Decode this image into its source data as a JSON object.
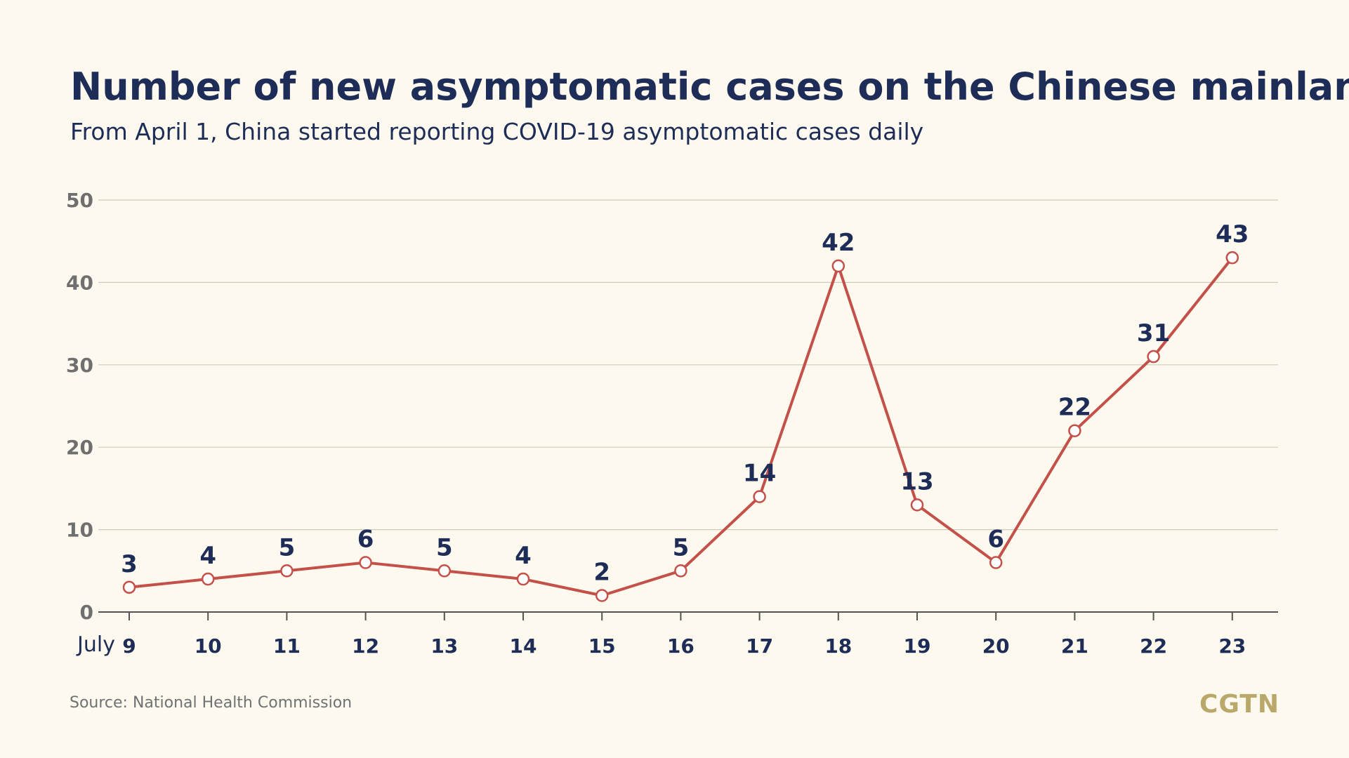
{
  "header": {
    "title": "Number of new asymptomatic cases on the Chinese mainland",
    "subtitle": "From April 1, China started reporting COVID-19 asymptomatic cases daily"
  },
  "footer": {
    "source": "Source: National Health Commission",
    "logo": "CGTN"
  },
  "colors": {
    "line": "#c4504a",
    "grid": "#cfcabb",
    "axis": "#545454",
    "label": "#1d2d57",
    "tick_y": "#6f6f6f",
    "point_fill": "#ffffff"
  },
  "chart_data": {
    "type": "line",
    "x_prefix": "July",
    "categories": [
      "9",
      "10",
      "11",
      "12",
      "13",
      "14",
      "15",
      "16",
      "17",
      "18",
      "19",
      "20",
      "21",
      "22",
      "23"
    ],
    "values": [
      3,
      4,
      5,
      6,
      5,
      4,
      2,
      5,
      14,
      42,
      13,
      6,
      22,
      31,
      43
    ],
    "ylim": [
      0,
      50
    ],
    "yticks": [
      0,
      10,
      20,
      30,
      40,
      50
    ],
    "grid": true,
    "data_labels": true
  }
}
